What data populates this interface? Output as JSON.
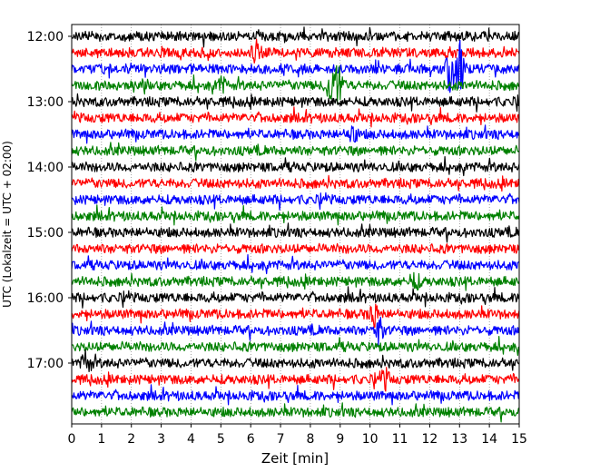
{
  "chart_data": {
    "type": "line",
    "title": "",
    "xlabel": "Zeit  [min]",
    "ylabel": "UTC (Lokalzeit = UTC + 02:00)",
    "xlim": [
      0,
      15
    ],
    "xticks": [
      "0",
      "1",
      "2",
      "3",
      "4",
      "5",
      "6",
      "7",
      "8",
      "9",
      "10",
      "11",
      "12",
      "13",
      "14",
      "15"
    ],
    "yticks": [
      "12:00",
      "13:00",
      "14:00",
      "15:00",
      "16:00",
      "17:00"
    ],
    "trace_minutes": 15,
    "trace_start": "12:00",
    "trace_count": 24,
    "trace_colors": [
      "#000000",
      "#ff0000",
      "#0000ff",
      "#008000"
    ],
    "vertical_grid": true,
    "events": [
      {
        "trace_start": "12:15",
        "minute": 6.2,
        "amplitude": 1.2
      },
      {
        "trace_start": "12:30",
        "minute": 12.7,
        "amplitude": 2.6
      },
      {
        "trace_start": "12:30",
        "minute": 13.0,
        "amplitude": 3.0
      },
      {
        "trace_start": "12:45",
        "minute": 8.7,
        "amplitude": 2.8
      },
      {
        "trace_start": "12:45",
        "minute": 8.95,
        "amplitude": 2.0
      },
      {
        "trace_start": "12:45",
        "minute": 5.0,
        "amplitude": 0.9
      },
      {
        "trace_start": "13:30",
        "minute": 9.4,
        "amplitude": 1.0
      },
      {
        "trace_start": "15:45",
        "minute": 11.5,
        "amplitude": 1.0
      },
      {
        "trace_start": "16:15",
        "minute": 10.1,
        "amplitude": 1.4
      },
      {
        "trace_start": "16:30",
        "minute": 10.3,
        "amplitude": 1.3
      },
      {
        "trace_start": "17:00",
        "minute": 0.5,
        "amplitude": 1.5
      },
      {
        "trace_start": "17:15",
        "minute": 10.5,
        "amplitude": 1.0
      }
    ]
  }
}
